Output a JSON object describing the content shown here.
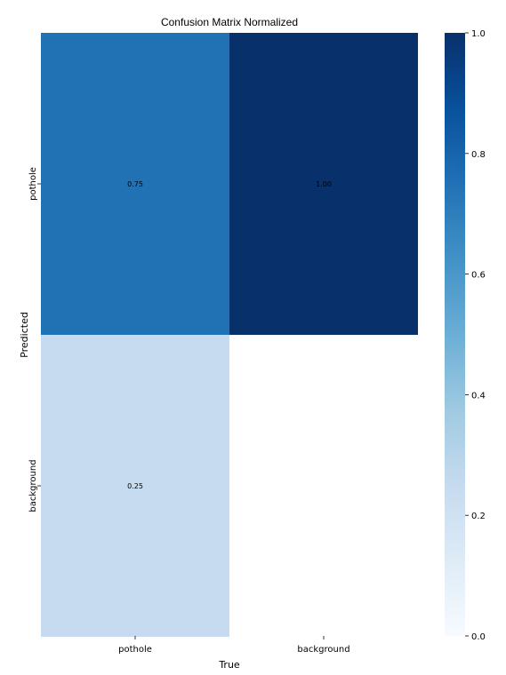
{
  "chart_data": {
    "type": "heatmap",
    "title": "Confusion Matrix Normalized",
    "xlabel": "True",
    "ylabel": "Predicted",
    "x_categories": [
      "pothole",
      "background"
    ],
    "y_categories": [
      "pothole",
      "background"
    ],
    "values": [
      [
        0.75,
        1.0
      ],
      [
        0.25,
        null
      ]
    ],
    "cell_labels": [
      [
        "0.75",
        "1.00"
      ],
      [
        "0.25",
        ""
      ]
    ],
    "colorbar": {
      "range": [
        0.0,
        1.0
      ],
      "ticks": [
        0.0,
        0.2,
        0.4,
        0.6,
        0.8,
        1.0
      ],
      "tick_labels": [
        "0.0",
        "0.2",
        "0.4",
        "0.6",
        "0.8",
        "1.0"
      ],
      "colormap": "Blues",
      "low_color": "#f7fbff",
      "high_color": "#08306b"
    },
    "grid": false
  }
}
